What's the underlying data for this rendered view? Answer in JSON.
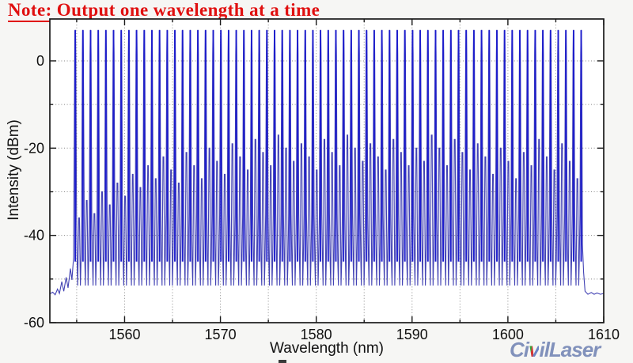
{
  "note": {
    "text": "Note: Output one wavelength at a time",
    "color": "#e01010"
  },
  "logo": {
    "part1": "Ci",
    "accent": "v",
    "part2": "ilLaser",
    "color": "#8191bb",
    "accent_colors": [
      "#3aa33a",
      "#d23333",
      "#6b84c4"
    ]
  },
  "chart_data": {
    "type": "line",
    "title": "",
    "xlabel": "Wavelength (nm)",
    "ylabel": "Intensity (dBm)",
    "xlim": [
      1552.2,
      1610
    ],
    "ylim": [
      -60,
      9.6
    ],
    "x_major_ticks": [
      1560,
      1570,
      1580,
      1590,
      1600,
      1610
    ],
    "x_minor_tick_step_nm": 5,
    "y_major_ticks": [
      0,
      -20,
      -40,
      -60
    ],
    "y_minor_tick_step_db": 10,
    "grid": {
      "style": "dotted",
      "x_step_nm": 5,
      "y_step_db": 10,
      "color": "#888888"
    },
    "line_color": "#4343b4",
    "peak_line_color": "#1c1ccd",
    "series_description": "Overlaid output spectra of tunable laser, one lasing peak per channel",
    "channels": {
      "first_peak_nm": 1554.85,
      "spacing_nm": 0.8,
      "count": 67,
      "peak_level_dbm": 7.0
    },
    "noise_floor_dbm": -53.4,
    "inter_channel_valley_dbm": -51.5,
    "peak_shape": {
      "top_halfwidth_nm": 0.022,
      "upper_knee_dbm": 1.5,
      "side_knee_dbm": -35,
      "lower_knee_dbm": -46,
      "knee_offsets_nm": [
        0.055,
        0.13,
        0.2,
        0.26
      ],
      "secondary_halfwidth_nm": 0.04
    },
    "secondary_peak_dbm": [
      -36,
      -32,
      -35,
      -30,
      -33,
      -28,
      -31,
      -26,
      -29,
      -24,
      -27,
      -22,
      -25,
      -28,
      -21,
      -24,
      -27,
      -20,
      -23,
      -26,
      -19,
      -22,
      -25,
      -18,
      -21,
      -24,
      -17,
      -20,
      -23,
      -19,
      -22,
      -25,
      -18,
      -21,
      -24,
      -17,
      -20,
      -23,
      -19,
      -22,
      -25,
      -18,
      -21,
      -24,
      -20,
      -23,
      -17,
      -20,
      -24,
      -18,
      -21,
      -25,
      -19,
      -22,
      -26,
      -20,
      -23,
      -27,
      -21,
      -24,
      -18,
      -22,
      -25,
      -19,
      -23,
      -27
    ],
    "left_tail_points": [
      [
        1552.2,
        -53.4
      ],
      [
        1552.5,
        -53.0
      ],
      [
        1552.75,
        -53.6
      ],
      [
        1553.0,
        -52.3
      ],
      [
        1553.2,
        -53.3
      ],
      [
        1553.45,
        -50.6
      ],
      [
        1553.65,
        -52.8
      ],
      [
        1553.9,
        -49.6
      ],
      [
        1554.1,
        -52.0
      ],
      [
        1554.35,
        -47.6
      ],
      [
        1554.5,
        -50.2
      ],
      [
        1554.68,
        -45.0
      ]
    ],
    "right_tail_points": [
      [
        1607.78,
        -42.0
      ],
      [
        1607.9,
        -48.5
      ],
      [
        1608.05,
        -52.8
      ],
      [
        1608.35,
        -53.5
      ],
      [
        1608.7,
        -53.1
      ],
      [
        1609.0,
        -53.5
      ],
      [
        1609.3,
        -53.2
      ],
      [
        1609.65,
        -53.5
      ],
      [
        1610,
        -53.3
      ]
    ]
  }
}
